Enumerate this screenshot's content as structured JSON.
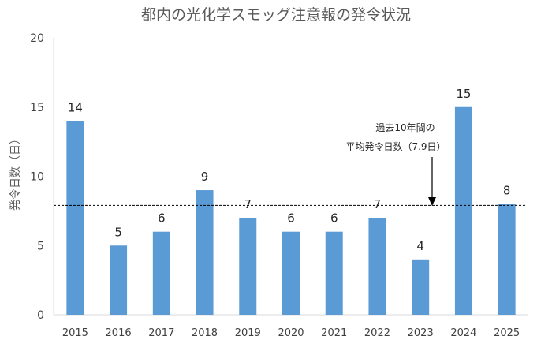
{
  "chart_data": {
    "type": "bar",
    "title": "都内の光化学スモッグ注意報の発令状況",
    "ylabel": "発令日数（日）",
    "xlabel": "",
    "categories": [
      "2015",
      "2016",
      "2017",
      "2018",
      "2019",
      "2020",
      "2021",
      "2022",
      "2023",
      "2024",
      "2025"
    ],
    "values": [
      14,
      5,
      6,
      9,
      7,
      6,
      6,
      7,
      4,
      15,
      8
    ],
    "data_labels": [
      "14",
      "5",
      "6",
      "9",
      "7",
      "6",
      "6",
      "7",
      "4",
      "15",
      "8"
    ],
    "ylim": [
      0,
      20
    ],
    "yticks": [
      "0",
      "5",
      "10",
      "15",
      "20"
    ],
    "bar_color": "#5B9BD5",
    "grid": false,
    "reference_line": {
      "value": 7.9,
      "style": "dashed"
    },
    "annotation": {
      "line1": "過去10年間の",
      "line2": "平均発令日数（7.9日）"
    }
  }
}
